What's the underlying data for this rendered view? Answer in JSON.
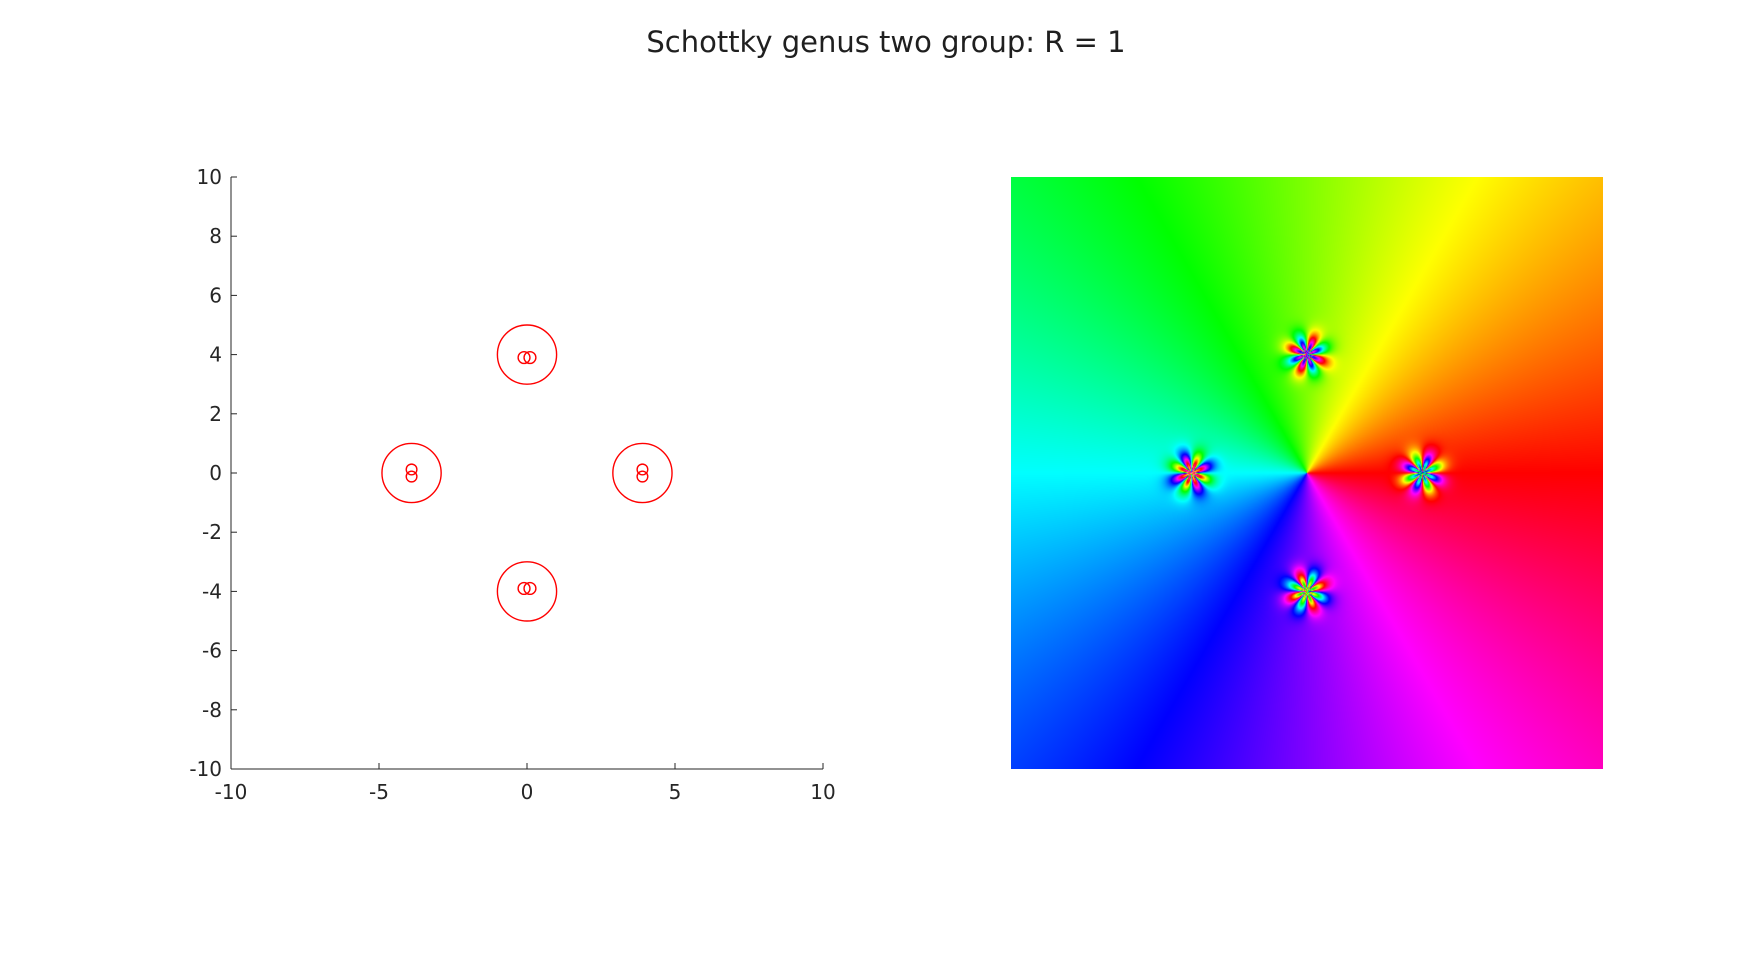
{
  "title": "Schottky genus two group: R = 1",
  "chart_data": [
    {
      "type": "scatter",
      "title": "",
      "xlabel": "",
      "ylabel": "",
      "xlim": [
        -10,
        10
      ],
      "ylim": [
        -10,
        10
      ],
      "xticks": [
        "-10",
        "-5",
        "0",
        "5",
        "10"
      ],
      "yticks": [
        "10",
        "8",
        "6",
        "4",
        "2",
        "0",
        "-2",
        "-4",
        "-6",
        "-8",
        "-10"
      ],
      "grid": false,
      "color": "#ff0000",
      "circles": [
        {
          "cx": 0,
          "cy": 4,
          "r": 1
        },
        {
          "cx": 0,
          "cy": -4,
          "r": 1
        },
        {
          "cx": -3.9,
          "cy": 0,
          "r": 1
        },
        {
          "cx": 3.9,
          "cy": 0,
          "r": 1
        },
        {
          "cx": -0.1,
          "cy": 3.9,
          "r": 0.2
        },
        {
          "cx": 0.1,
          "cy": 3.9,
          "r": 0.2
        },
        {
          "cx": -0.1,
          "cy": -3.9,
          "r": 0.2
        },
        {
          "cx": 0.1,
          "cy": -3.9,
          "r": 0.2
        },
        {
          "cx": -3.9,
          "cy": 0.12,
          "r": 0.18
        },
        {
          "cx": -3.9,
          "cy": -0.12,
          "r": 0.18
        },
        {
          "cx": 3.9,
          "cy": 0.12,
          "r": 0.18
        },
        {
          "cx": 3.9,
          "cy": -0.12,
          "r": 0.18
        }
      ]
    },
    {
      "type": "heatmap",
      "title": "",
      "description_colormap": "hsv phase",
      "xlim": [
        -10,
        10
      ],
      "ylim": [
        -10,
        10
      ],
      "axes_visible": false,
      "singularities": [
        {
          "x": 0,
          "y": 4
        },
        {
          "x": 0,
          "y": -4
        },
        {
          "x": -3.9,
          "y": 0
        },
        {
          "x": 3.9,
          "y": 0
        }
      ]
    }
  ]
}
